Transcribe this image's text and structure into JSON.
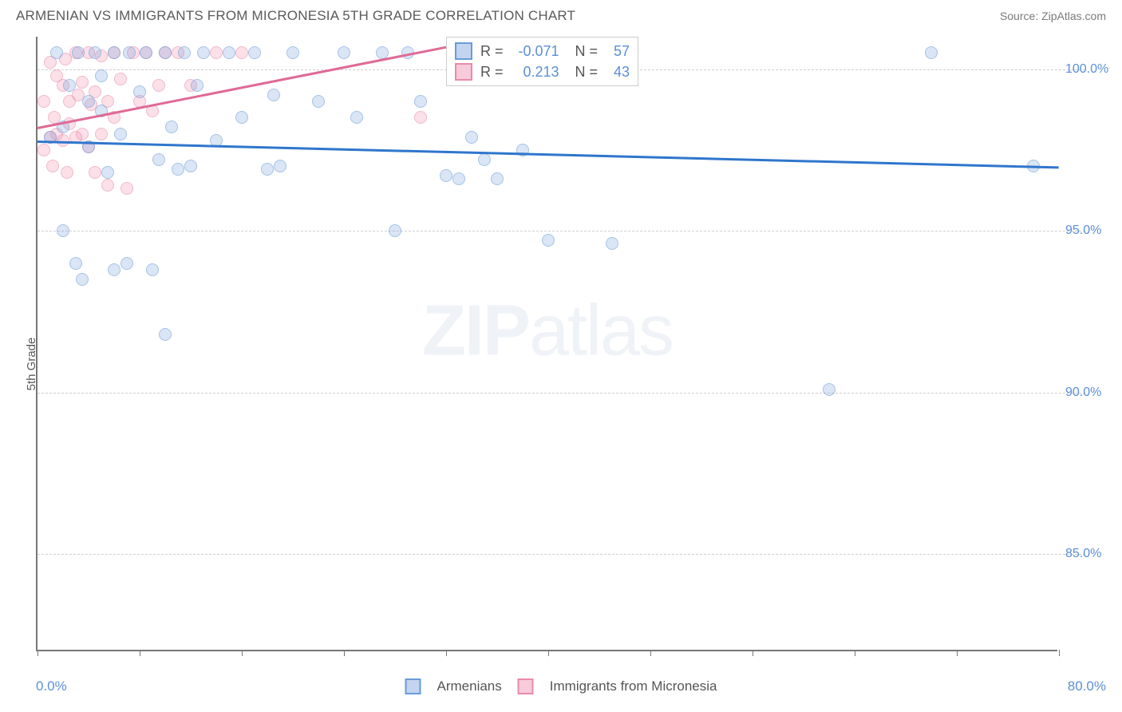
{
  "header": {
    "title": "ARMENIAN VS IMMIGRANTS FROM MICRONESIA 5TH GRADE CORRELATION CHART",
    "source": "Source: ZipAtlas.com"
  },
  "ylabel": "5th Grade",
  "watermark_zip": "ZIP",
  "watermark_atlas": "atlas",
  "chart": {
    "type": "scatter",
    "xlim": [
      0,
      80
    ],
    "ylim": [
      82,
      101
    ],
    "xtick_left": "0.0%",
    "xtick_right": "80.0%",
    "xticks_pos": [
      0,
      8,
      16,
      24,
      32,
      40,
      48,
      56,
      64,
      72,
      80
    ],
    "yticks": [
      {
        "v": 85,
        "label": "85.0%"
      },
      {
        "v": 90,
        "label": "90.0%"
      },
      {
        "v": 95,
        "label": "95.0%"
      },
      {
        "v": 100,
        "label": "100.0%"
      }
    ],
    "grid_color": "#cfcfcf",
    "background_color": "#ffffff",
    "series": [
      {
        "name": "Armenians",
        "fill": "rgba(120,160,220,0.45)",
        "stroke": "#6a9bd8",
        "trend_color": "#2f76cc",
        "R": "-0.071",
        "N": "57",
        "trend": {
          "x1": 0,
          "y1": 97.8,
          "x2": 80,
          "y2": 97.0
        },
        "points": [
          [
            1,
            97.9
          ],
          [
            1.5,
            100.5
          ],
          [
            2,
            98.2
          ],
          [
            2,
            95.0
          ],
          [
            2.5,
            99.5
          ],
          [
            3,
            94.0
          ],
          [
            3.2,
            100.5
          ],
          [
            3.5,
            93.5
          ],
          [
            4,
            97.6
          ],
          [
            4,
            99
          ],
          [
            4.5,
            100.5
          ],
          [
            5,
            98.7
          ],
          [
            5,
            99.8
          ],
          [
            5.5,
            96.8
          ],
          [
            6,
            100.5
          ],
          [
            6,
            93.8
          ],
          [
            6.5,
            98
          ],
          [
            7,
            94.0
          ],
          [
            7.2,
            100.5
          ],
          [
            8,
            99.3
          ],
          [
            8.5,
            100.5
          ],
          [
            9,
            93.8
          ],
          [
            9.5,
            97.2
          ],
          [
            10,
            91.8
          ],
          [
            10,
            100.5
          ],
          [
            10.5,
            98.2
          ],
          [
            11,
            96.9
          ],
          [
            11.5,
            100.5
          ],
          [
            12,
            97.0
          ],
          [
            12.5,
            99.5
          ],
          [
            13,
            100.5
          ],
          [
            14,
            97.8
          ],
          [
            15,
            100.5
          ],
          [
            16,
            98.5
          ],
          [
            17,
            100.5
          ],
          [
            18,
            96.9
          ],
          [
            18.5,
            99.2
          ],
          [
            19,
            97.0
          ],
          [
            20,
            100.5
          ],
          [
            22,
            99.0
          ],
          [
            24,
            100.5
          ],
          [
            25,
            98.5
          ],
          [
            27,
            100.5
          ],
          [
            28,
            95.0
          ],
          [
            29,
            100.5
          ],
          [
            30,
            99.0
          ],
          [
            32,
            96.7
          ],
          [
            33,
            96.6
          ],
          [
            34,
            97.9
          ],
          [
            35,
            97.2
          ],
          [
            36,
            96.6
          ],
          [
            38,
            97.5
          ],
          [
            40,
            94.7
          ],
          [
            45,
            94.6
          ],
          [
            62,
            90.1
          ],
          [
            70,
            100.5
          ],
          [
            78,
            97.0
          ]
        ]
      },
      {
        "name": "Immigrants from Micronesia",
        "fill": "rgba(240,140,170,0.45)",
        "stroke": "#e88aab",
        "trend_color": "#e06a95",
        "R": "0.213",
        "N": "43",
        "trend": {
          "x1": 0,
          "y1": 98.2,
          "x2": 32,
          "y2": 100.7
        },
        "points": [
          [
            0.5,
            97.5
          ],
          [
            0.5,
            99
          ],
          [
            1,
            97.9
          ],
          [
            1,
            100.2
          ],
          [
            1.2,
            97.0
          ],
          [
            1.3,
            98.5
          ],
          [
            1.5,
            99.8
          ],
          [
            1.5,
            98.0
          ],
          [
            2,
            99.5
          ],
          [
            2,
            97.8
          ],
          [
            2.2,
            100.3
          ],
          [
            2.3,
            96.8
          ],
          [
            2.5,
            99.0
          ],
          [
            2.5,
            98.3
          ],
          [
            3,
            97.9
          ],
          [
            3,
            100.5
          ],
          [
            3.2,
            99.2
          ],
          [
            3.5,
            98.0
          ],
          [
            3.5,
            99.6
          ],
          [
            4,
            100.5
          ],
          [
            4,
            97.6
          ],
          [
            4.2,
            98.9
          ],
          [
            4.5,
            96.8
          ],
          [
            4.5,
            99.3
          ],
          [
            5,
            100.4
          ],
          [
            5,
            98.0
          ],
          [
            5.5,
            96.4
          ],
          [
            5.5,
            99.0
          ],
          [
            6,
            100.5
          ],
          [
            6,
            98.5
          ],
          [
            6.5,
            99.7
          ],
          [
            7,
            96.3
          ],
          [
            7.5,
            100.5
          ],
          [
            8,
            99.0
          ],
          [
            8.5,
            100.5
          ],
          [
            9,
            98.7
          ],
          [
            9.5,
            99.5
          ],
          [
            10,
            100.5
          ],
          [
            11,
            100.5
          ],
          [
            12,
            99.5
          ],
          [
            14,
            100.5
          ],
          [
            16,
            100.5
          ],
          [
            30,
            98.5
          ]
        ]
      }
    ]
  },
  "legend_top": {
    "R_label": "R =",
    "N_label": "N ="
  },
  "legend_bottom": {
    "items": [
      "Armenians",
      "Immigrants from Micronesia"
    ]
  }
}
